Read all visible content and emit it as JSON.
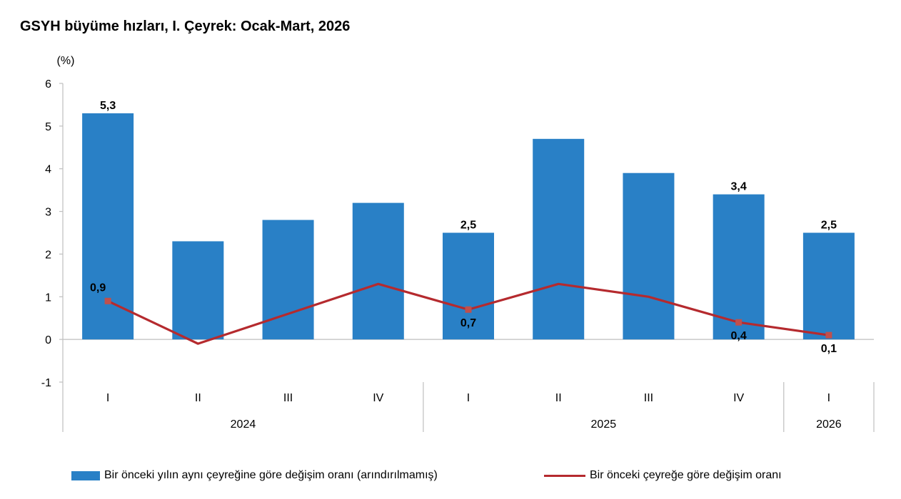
{
  "title": "GSYH büyüme hızları, I. Çeyrek: Ocak-Mart, 2026",
  "colors": {
    "bar": "#2980c6",
    "line": "#b52a2e",
    "marker": "#c0504d",
    "axis": "#bfbfbf"
  },
  "chart_data": {
    "type": "bar",
    "combo": "bar+line",
    "ylabel": "(%)",
    "ylim": [
      -1,
      6
    ],
    "yticks": [
      "-1",
      "0",
      "1",
      "2",
      "3",
      "4",
      "5",
      "6"
    ],
    "grid": false,
    "legend_position": "bottom",
    "categories": [
      "I",
      "II",
      "III",
      "IV",
      "I",
      "II",
      "III",
      "IV",
      "I"
    ],
    "groups": [
      {
        "label": "2024",
        "count": 4
      },
      {
        "label": "2025",
        "count": 4
      },
      {
        "label": "2026",
        "count": 1
      }
    ],
    "series": [
      {
        "name": "Bir önceki yılın aynı çeyreğine göre değişim oranı (arındırılmamış)",
        "type": "bar",
        "values": [
          5.3,
          2.3,
          2.8,
          3.2,
          2.5,
          4.7,
          3.9,
          3.4,
          2.5
        ],
        "labels": [
          "5,3",
          "",
          "",
          "",
          "2,5",
          "",
          "",
          "3,4",
          "2,5"
        ]
      },
      {
        "name": "Bir önceki çeyreğe göre değişim oranı",
        "type": "line",
        "values": [
          0.9,
          -0.1,
          0.6,
          1.3,
          0.7,
          1.3,
          1.0,
          0.4,
          0.1
        ],
        "labels": [
          "0,9",
          "",
          "",
          "",
          "0,7",
          "",
          "",
          "0,4",
          "0,1"
        ]
      }
    ]
  }
}
